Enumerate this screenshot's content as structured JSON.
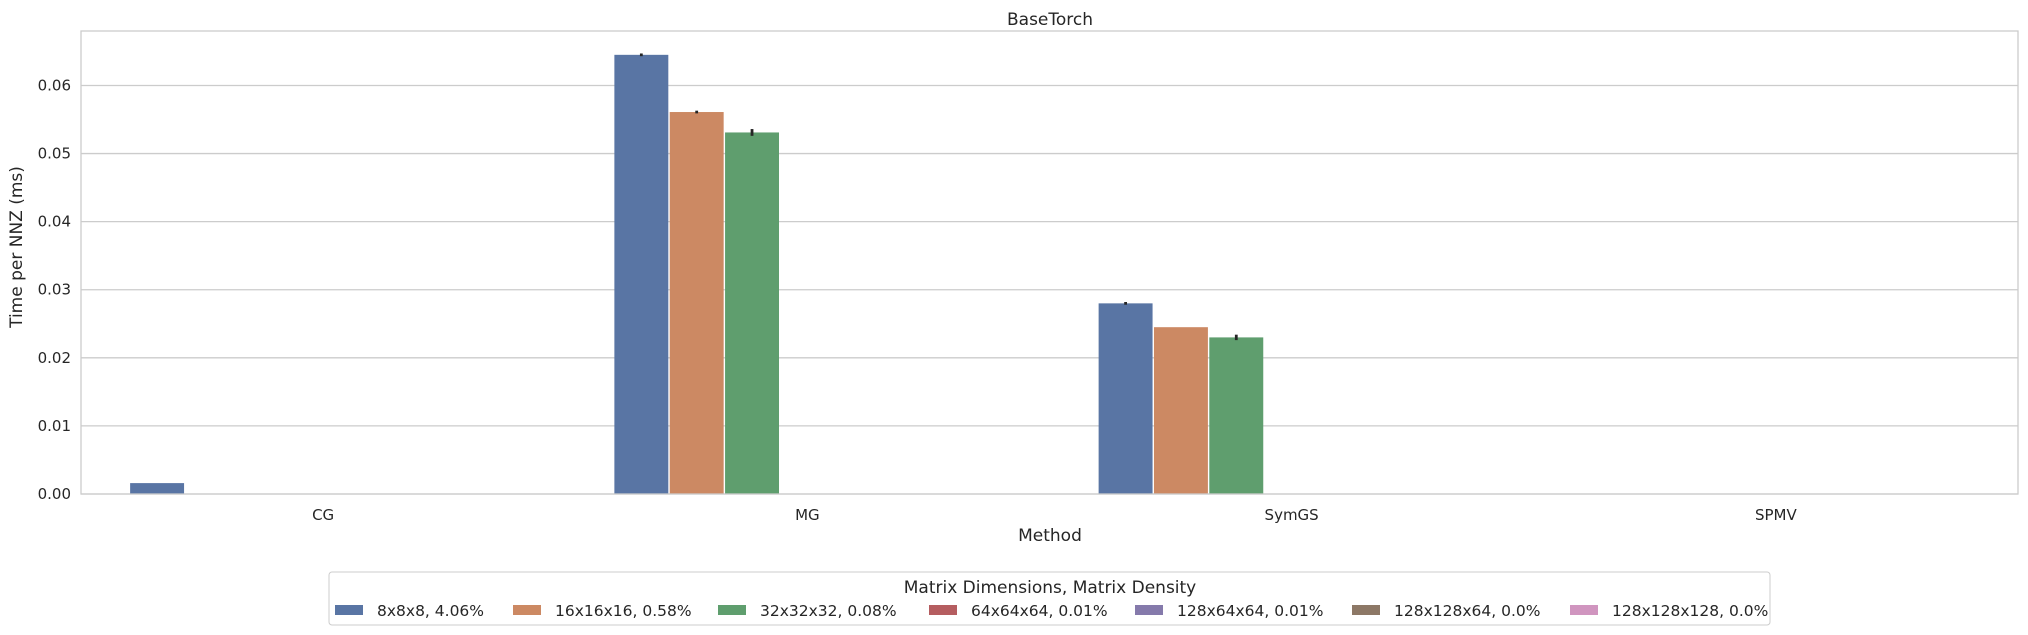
{
  "chart_data": {
    "type": "bar",
    "title": "BaseTorch",
    "xlabel": "Method",
    "ylabel": "Time per NNZ (ms)",
    "categories": [
      "CG",
      "MG",
      "SymGS",
      "SPMV"
    ],
    "ylim": [
      0,
      0.068
    ],
    "yticks": [
      0.0,
      0.01,
      0.02,
      0.03,
      0.04,
      0.05,
      0.06
    ],
    "ytick_labels": [
      "0.00",
      "0.01",
      "0.02",
      "0.03",
      "0.04",
      "0.05",
      "0.06"
    ],
    "grid": "horizontal",
    "legend_title": "Matrix Dimensions, Matrix Density",
    "legend_position": "bottom-center",
    "series": [
      {
        "name": "8x8x8, 4.06%",
        "color": "#5975a4",
        "values": [
          0.0016,
          0.0645,
          0.028,
          0.0
        ],
        "err": [
          0.0,
          0.0002,
          0.0002,
          0.0
        ]
      },
      {
        "name": "16x16x16, 0.58%",
        "color": "#cc8963",
        "values": [
          0.0,
          0.0561,
          0.0245,
          0.0
        ],
        "err": [
          0.0,
          0.0002,
          0.0,
          0.0
        ]
      },
      {
        "name": "32x32x32, 0.08%",
        "color": "#5f9e6e",
        "values": [
          0.0,
          0.0531,
          0.023,
          0.0
        ],
        "err": [
          0.0,
          0.0005,
          0.0004,
          0.0
        ]
      },
      {
        "name": "64x64x64, 0.01%",
        "color": "#b55d60",
        "values": [
          0.0,
          0.0,
          0.0,
          0.0
        ],
        "err": [
          0.0,
          0.0,
          0.0,
          0.0
        ]
      },
      {
        "name": "128x64x64, 0.01%",
        "color": "#857aab",
        "values": [
          0.0,
          0.0,
          0.0,
          0.0
        ],
        "err": [
          0.0,
          0.0,
          0.0,
          0.0
        ]
      },
      {
        "name": "128x128x64, 0.0%",
        "color": "#8d7866",
        "values": [
          0.0,
          0.0,
          0.0,
          0.0
        ],
        "err": [
          0.0,
          0.0,
          0.0,
          0.0
        ]
      },
      {
        "name": "128x128x128, 0.0%",
        "color": "#d095bf",
        "values": [
          0.0,
          0.0,
          0.0,
          0.0
        ],
        "err": [
          0.0,
          0.0,
          0.0,
          0.0
        ]
      }
    ]
  }
}
